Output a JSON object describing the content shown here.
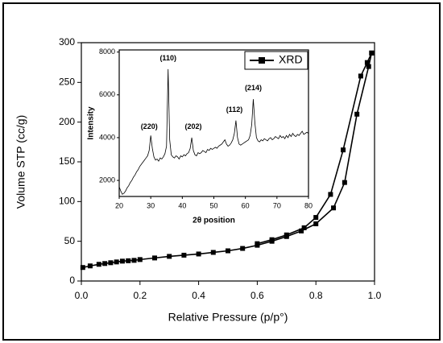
{
  "chart_data": [
    {
      "type": "line",
      "xlabel": "Relative Pressure (p/p°)",
      "ylabel": "Volume STP (cc/g)",
      "xlim": [
        0,
        1
      ],
      "ylim": [
        0,
        300
      ],
      "xticks": [
        {
          "value": 0,
          "label": "0.0"
        },
        0.2,
        0.4,
        0.6,
        0.8,
        {
          "value": 1,
          "label": "1.0"
        }
      ],
      "yticks": [
        0,
        50,
        100,
        150,
        200,
        250,
        300
      ],
      "marker": "square",
      "series": [
        {
          "color": "#000000",
          "x": [
            0.005,
            0.03,
            0.06,
            0.08,
            0.1,
            0.12,
            0.14,
            0.16,
            0.18,
            0.2,
            0.25,
            0.3,
            0.35,
            0.4,
            0.45,
            0.5,
            0.55,
            0.6,
            0.65,
            0.7,
            0.75,
            0.8,
            0.86,
            0.898,
            0.94,
            0.98,
            0.99
          ],
          "values": [
            17,
            19,
            21,
            22,
            23,
            24,
            25,
            25.5,
            26,
            27,
            29,
            31,
            32.5,
            34,
            36,
            38,
            41,
            45,
            50,
            56,
            63,
            72,
            92,
            124,
            210,
            270,
            287
          ]
        },
        {
          "color": "#000000",
          "x": [
            0.99,
            0.975,
            0.953,
            0.893,
            0.85,
            0.8,
            0.76,
            0.7,
            0.65,
            0.6
          ],
          "values": [
            287,
            275,
            258,
            165,
            109,
            80,
            67,
            58,
            52,
            47
          ]
        }
      ]
    },
    {
      "type": "line",
      "xlabel": "2θ position",
      "ylabel": "Intensity",
      "xlim": [
        20,
        80
      ],
      "ylim": [
        1250,
        8100
      ],
      "xticks": [
        20,
        30,
        40,
        50,
        60,
        70,
        80
      ],
      "yticks": [
        2000,
        4000,
        6000,
        8000
      ],
      "legend": "upper right",
      "annotations": [
        {
          "text": "(220)",
          "x": 29.5,
          "y": 4500
        },
        {
          "text": "(110)",
          "x": 35.5,
          "y": 7700
        },
        {
          "text": "(202)",
          "x": 43.5,
          "y": 4500
        },
        {
          "text": "(112)",
          "x": 56.5,
          "y": 5300
        },
        {
          "text": "(214)",
          "x": 62.5,
          "y": 6300
        }
      ],
      "series": [
        {
          "name": "XRD",
          "color": "#000000",
          "marker": "square",
          "x": [
            20,
            20.5,
            21,
            21.5,
            22,
            22.5,
            23,
            23.5,
            24,
            24.5,
            25,
            25.5,
            26,
            26.5,
            27,
            27.5,
            28,
            28.5,
            29,
            29.5,
            30,
            30.5,
            31,
            31.5,
            32,
            32.5,
            33,
            33.5,
            34,
            34.5,
            35,
            35.5,
            36,
            36.5,
            37,
            37.5,
            38,
            38.5,
            39,
            39.5,
            40,
            40.5,
            41,
            41.5,
            42,
            42.5,
            43,
            43.5,
            44,
            44.5,
            45,
            45.5,
            46,
            46.5,
            47,
            47.5,
            48,
            48.5,
            49,
            49.5,
            50,
            50.5,
            51,
            51.5,
            52,
            52.5,
            53,
            53.5,
            54,
            54.5,
            55,
            55.5,
            56,
            56.5,
            57,
            57.5,
            58,
            58.5,
            59,
            59.5,
            60,
            60.5,
            61,
            61.5,
            62,
            62.5,
            63,
            63.5,
            64,
            64.5,
            65,
            65.5,
            66,
            66.5,
            67,
            67.5,
            68,
            68.5,
            69,
            69.5,
            70,
            70.5,
            71,
            71.5,
            72,
            72.5,
            73,
            73.5,
            74,
            74.5,
            75,
            75.5,
            76,
            76.5,
            77,
            77.5,
            78,
            78.5,
            79,
            79.5,
            80
          ],
          "values": [
            1700,
            1500,
            1350,
            1400,
            1500,
            1650,
            1750,
            1900,
            2000,
            2150,
            2250,
            2400,
            2500,
            2650,
            2750,
            2850,
            2950,
            3050,
            3150,
            3400,
            4100,
            3500,
            3100,
            2950,
            3000,
            2900,
            3050,
            3000,
            3100,
            3250,
            3600,
            7200,
            3900,
            3200,
            3100,
            3050,
            3150,
            3100,
            3000,
            3150,
            3100,
            3200,
            3150,
            3250,
            3300,
            3500,
            4000,
            3400,
            3200,
            3150,
            3300,
            3250,
            3300,
            3400,
            3350,
            3300,
            3450,
            3400,
            3500,
            3450,
            3500,
            3550,
            3500,
            3600,
            3650,
            3700,
            3800,
            3900,
            3700,
            3600,
            3650,
            3750,
            3900,
            4200,
            4800,
            4000,
            3700,
            3650,
            3700,
            3750,
            3800,
            3850,
            3900,
            4100,
            4600,
            5800,
            4700,
            4000,
            3850,
            3800,
            3900,
            3850,
            3950,
            3900,
            3850,
            3950,
            4000,
            3900,
            3950,
            4050,
            4000,
            3950,
            4100,
            4000,
            4050,
            3950,
            4100,
            4000,
            4150,
            4050,
            4200,
            4100,
            4050,
            4150,
            4100,
            4200,
            4300,
            4150,
            4200,
            4250,
            4200
          ]
        }
      ]
    }
  ]
}
